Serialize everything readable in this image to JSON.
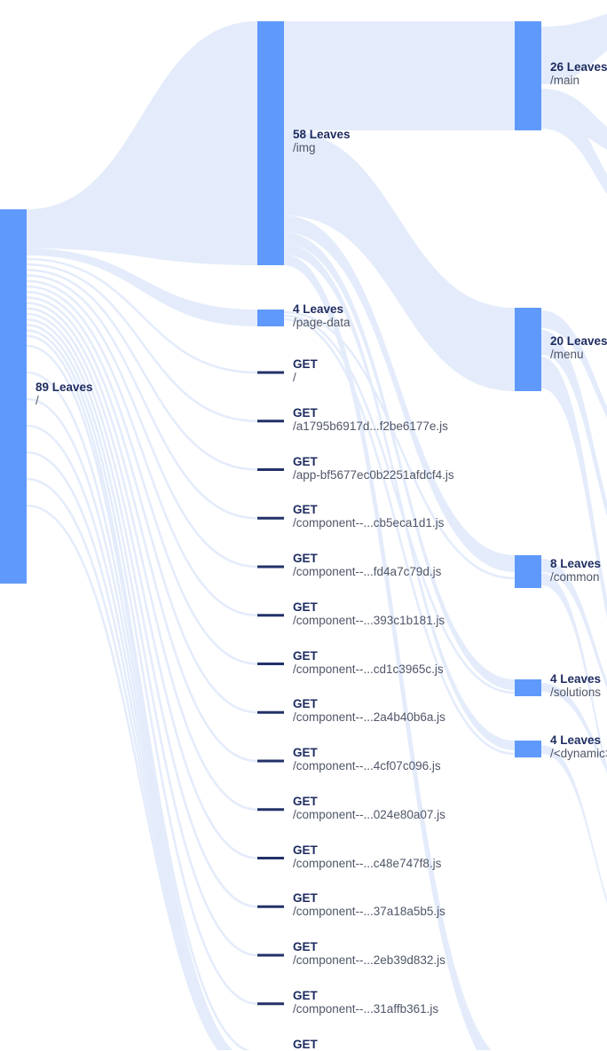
{
  "root": {
    "title": "89 Leaves",
    "path": "/"
  },
  "mid_nodes": [
    {
      "title": "58 Leaves",
      "path": "/img"
    },
    {
      "title": "4 Leaves",
      "path": "/page-data"
    }
  ],
  "requests": [
    {
      "method": "GET",
      "path": "/"
    },
    {
      "method": "GET",
      "path": "/a1795b6917d...f2be6177e.js"
    },
    {
      "method": "GET",
      "path": "/app-bf5677ec0b2251afdcf4.js"
    },
    {
      "method": "GET",
      "path": "/component--...cb5eca1d1.js"
    },
    {
      "method": "GET",
      "path": "/component--...fd4a7c79d.js"
    },
    {
      "method": "GET",
      "path": "/component--...393c1b181.js"
    },
    {
      "method": "GET",
      "path": "/component--...cd1c3965c.js"
    },
    {
      "method": "GET",
      "path": "/component--...2a4b40b6a.js"
    },
    {
      "method": "GET",
      "path": "/component--...4cf07c096.js"
    },
    {
      "method": "GET",
      "path": "/component--...024e80a07.js"
    },
    {
      "method": "GET",
      "path": "/component--...c48e747f8.js"
    },
    {
      "method": "GET",
      "path": "/component--...37a18a5b5.js"
    },
    {
      "method": "GET",
      "path": "/component--...2eb39d832.js"
    },
    {
      "method": "GET",
      "path": "/component--...31affb361.js"
    },
    {
      "method": "GET",
      "path": ""
    }
  ],
  "right_nodes": [
    {
      "title": "26 Leaves",
      "path": "/main"
    },
    {
      "title": "20 Leaves",
      "path": "/menu"
    },
    {
      "title": "8 Leaves",
      "path": "/common"
    },
    {
      "title": "4 Leaves",
      "path": "/solutions"
    },
    {
      "title": "4 Leaves",
      "path": "/<dynamic>"
    }
  ],
  "colors": {
    "node": "#5f99fb",
    "link": "#e4ecfb",
    "leaf_tick": "#223169",
    "title_text": "#1d2b5f",
    "path_text": "#4f5668"
  }
}
